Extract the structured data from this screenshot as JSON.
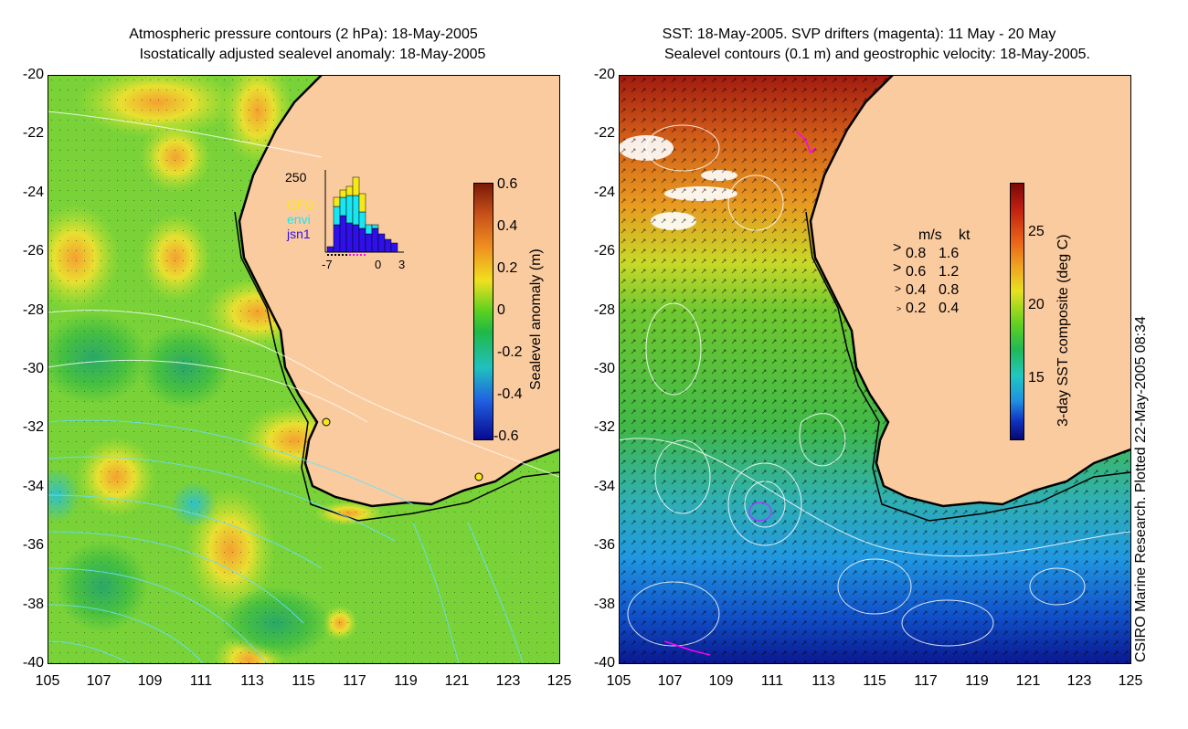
{
  "left_panel": {
    "title_line1": "Atmospheric pressure contours (2 hPa): 18-May-2005",
    "title_line2": "Isostatically adjusted sealevel anomaly: 18-May-2005",
    "colorbar": {
      "label": "Sealevel anomaly (m)",
      "ticks": [
        "0.6",
        "0.4",
        "0.2",
        "0",
        "-0.2",
        "-0.4",
        "-0.6"
      ]
    },
    "inset": {
      "ymax_label": "250",
      "legend": [
        "GFO",
        "envi",
        "jsn1"
      ],
      "legend_colors": [
        "#f7e81a",
        "#19e6f0",
        "#3010e8"
      ],
      "xticks": [
        "-7",
        "0",
        "3"
      ]
    }
  },
  "right_panel": {
    "title_line1": "SST: 18-May-2005. SVP drifters (magenta): 11 May - 20 May",
    "title_line2": "Sealevel contours (0.1 m) and geostrophic velocity: 18-May-2005.",
    "colorbar": {
      "label": "3-day SST composite (deg C)",
      "ticks": [
        "25",
        "20",
        "15"
      ]
    },
    "velocity_legend": {
      "header_ms": "m/s",
      "header_kt": "kt",
      "rows": [
        {
          "ms": "0.8",
          "kt": "1.6"
        },
        {
          "ms": "0.6",
          "kt": "1.2"
        },
        {
          "ms": "0.4",
          "kt": "0.8"
        },
        {
          "ms": "0.2",
          "kt": "0.4"
        }
      ]
    }
  },
  "axes": {
    "y_ticks": [
      "-20",
      "-22",
      "-24",
      "-26",
      "-28",
      "-30",
      "-32",
      "-34",
      "-36",
      "-38",
      "-40"
    ],
    "x_ticks": [
      "105",
      "107",
      "109",
      "111",
      "113",
      "115",
      "117",
      "119",
      "121",
      "123",
      "125"
    ]
  },
  "credit": "CSIRO Marine Research. Plotted 22-May-2005 08:34",
  "colors": {
    "land": "#fbcba0",
    "ocean_green": "#5fd32a",
    "warm_red": "#8b0a0a",
    "cold_blue": "#1030c0"
  }
}
